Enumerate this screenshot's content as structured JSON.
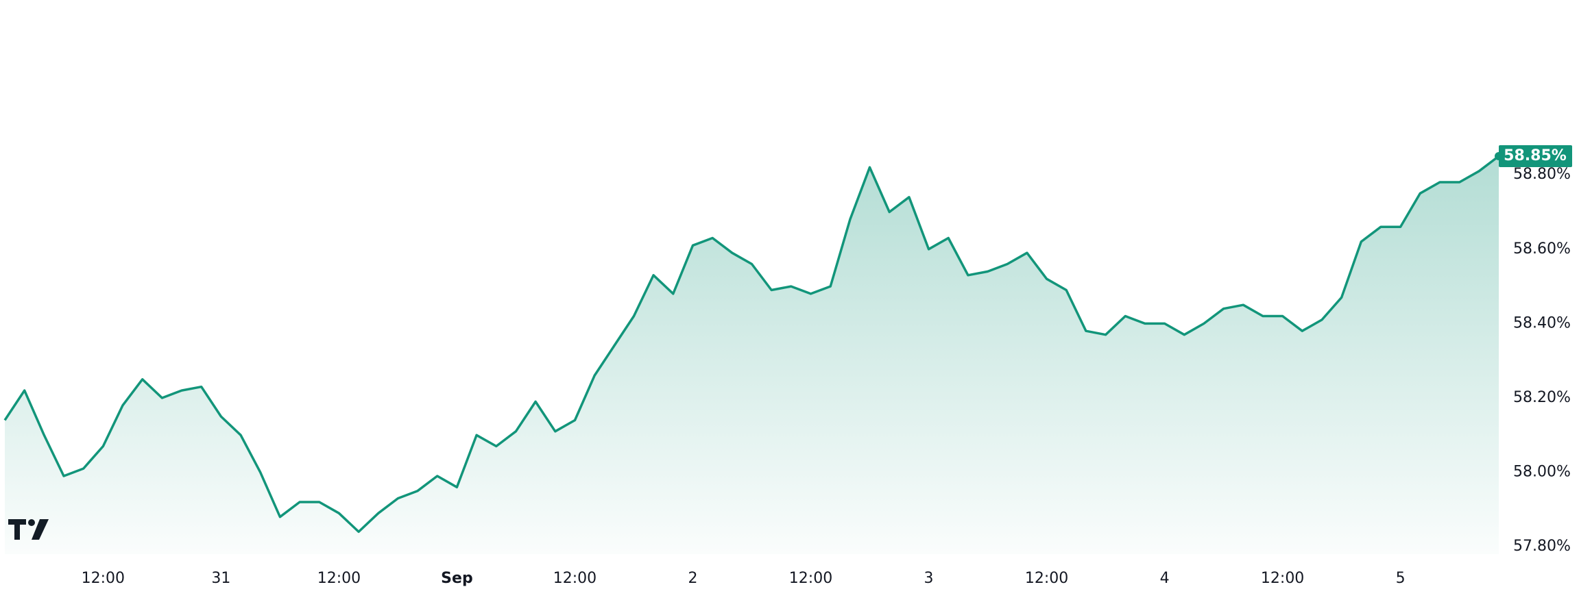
{
  "chart_data": {
    "type": "line",
    "color": "#12957a",
    "values": [
      58.14,
      58.22,
      58.1,
      57.99,
      58.01,
      58.07,
      58.18,
      58.25,
      58.2,
      58.22,
      58.23,
      58.15,
      58.1,
      58.0,
      57.88,
      57.92,
      57.92,
      57.89,
      57.84,
      57.89,
      57.93,
      57.95,
      57.99,
      57.96,
      58.1,
      58.07,
      58.11,
      58.19,
      58.11,
      58.14,
      58.26,
      58.34,
      58.42,
      58.53,
      58.48,
      58.61,
      58.63,
      58.59,
      58.56,
      58.49,
      58.5,
      58.48,
      58.5,
      58.68,
      58.82,
      58.7,
      58.74,
      58.6,
      58.63,
      58.53,
      58.54,
      58.56,
      58.59,
      58.52,
      58.49,
      58.38,
      58.37,
      58.42,
      58.4,
      58.4,
      58.37,
      58.4,
      58.44,
      58.45,
      58.42,
      58.42,
      58.38,
      58.41,
      58.47,
      58.62,
      58.66,
      58.66,
      58.75,
      58.78,
      58.78,
      58.81,
      58.85
    ],
    "value_labels": {
      "76": "58.85%"
    },
    "xlim": [
      0,
      76
    ],
    "xticks": [
      {
        "value": 5,
        "label": "12:00"
      },
      {
        "value": 11,
        "label": "31"
      },
      {
        "value": 17,
        "label": "12:00"
      },
      {
        "value": 23,
        "label": "Sep"
      },
      {
        "value": 29,
        "label": "12:00"
      },
      {
        "value": 35,
        "label": "2"
      },
      {
        "value": 41,
        "label": "12:00"
      },
      {
        "value": 47,
        "label": "3"
      },
      {
        "value": 53,
        "label": "12:00"
      },
      {
        "value": 59,
        "label": "4"
      },
      {
        "value": 65,
        "label": "12:00"
      },
      {
        "value": 71,
        "label": "5"
      }
    ],
    "ylim": [
      57.78,
      59.27
    ],
    "yticks": [
      {
        "value": 57.8,
        "label": "57.80%"
      },
      {
        "value": 58.0,
        "label": "58.00%"
      },
      {
        "value": 58.2,
        "label": "58.20%"
      },
      {
        "value": 58.4,
        "label": "58.40%"
      },
      {
        "value": 58.6,
        "label": "58.60%"
      },
      {
        "value": 58.8,
        "label": "58.80%"
      }
    ]
  }
}
